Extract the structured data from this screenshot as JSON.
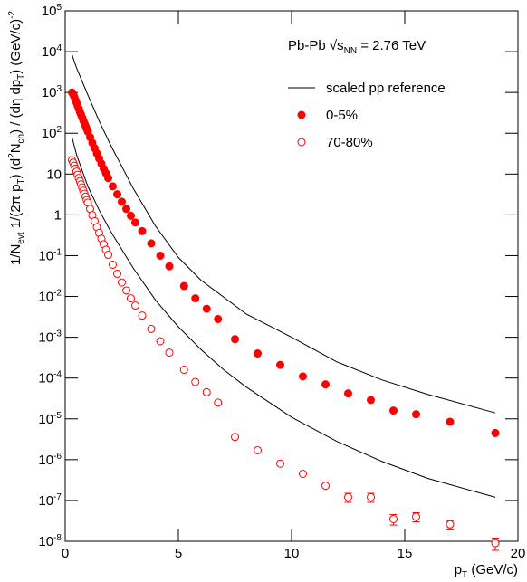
{
  "chart_data": {
    "type": "scatter",
    "log_y": true,
    "xlabel": "p_{T} (GeV/c)",
    "ylabel": "1/N_{evt} 1/(2π p_{T}) (d^{2}N_{ch}) / (dη dp_{T}) (GeV/c)^{-2}",
    "annotation": "Pb-Pb  √s_{NN} = 2.76 TeV",
    "xlim": [
      0,
      20
    ],
    "xticks": [
      0,
      5,
      10,
      15,
      20
    ],
    "ylim": [
      1e-08,
      100000
    ],
    "yticks": [
      {
        "value": 1e-08,
        "label": "10^{-8}"
      },
      {
        "value": 1e-07,
        "label": "10^{-7}"
      },
      {
        "value": 1e-06,
        "label": "10^{-6}"
      },
      {
        "value": 1e-05,
        "label": "10^{-5}"
      },
      {
        "value": 0.0001,
        "label": "10^{-4}"
      },
      {
        "value": 0.001,
        "label": "10^{-3}"
      },
      {
        "value": 0.01,
        "label": "10^{-2}"
      },
      {
        "value": 0.1,
        "label": "10^{-1}"
      },
      1,
      10,
      {
        "value": 100,
        "label": "10^{2}"
      },
      {
        "value": 1000,
        "label": "10^{3}"
      },
      {
        "value": 10000,
        "label": "10^{4}"
      },
      {
        "value": 100000,
        "label": "10^{5}"
      }
    ],
    "series": [
      {
        "name": "scaled pp reference",
        "color": "#000000",
        "marker": "line",
        "x": [
          0.3,
          0.5,
          1,
          1.5,
          2,
          3,
          4,
          5,
          6,
          8,
          10,
          12,
          14,
          16,
          19
        ],
        "values": [
          8500,
          4000,
          870,
          200,
          52,
          4.5,
          0.52,
          0.09,
          0.025,
          0.0037,
          0.001,
          0.00025,
          9e-05,
          4e-05,
          1.4e-05
        ]
      },
      {
        "color": "#000000",
        "marker": "line",
        "x": [
          0.3,
          0.5,
          1,
          1.5,
          2,
          3,
          4,
          5,
          6,
          7,
          8,
          10,
          12,
          14,
          16,
          19
        ],
        "values": [
          80,
          30,
          5,
          1.3,
          0.4,
          0.05,
          0.008,
          0.0018,
          0.0005,
          0.00016,
          6e-05,
          1.1e-05,
          2.8e-06,
          9e-07,
          3.5e-07,
          1.2e-07
        ]
      },
      {
        "name": "0-5%",
        "color": "#ff0000",
        "marker": "filled",
        "x": [
          0.3,
          0.35,
          0.4,
          0.45,
          0.5,
          0.55,
          0.6,
          0.65,
          0.7,
          0.75,
          0.8,
          0.85,
          0.9,
          0.95,
          1.0,
          1.1,
          1.2,
          1.3,
          1.4,
          1.5,
          1.6,
          1.7,
          1.8,
          1.9,
          2.1,
          2.3,
          2.5,
          2.7,
          2.9,
          3.1,
          3.4,
          3.8,
          4.2,
          4.6,
          5.25,
          5.75,
          6.25,
          6.75,
          7.5,
          8.5,
          9.5,
          10.5,
          11.5,
          12.5,
          13.5,
          14.5,
          15.5,
          17,
          19
        ],
        "values": [
          1000,
          900,
          780,
          650,
          560,
          470,
          400,
          335,
          285,
          240,
          205,
          175,
          150,
          128,
          110,
          80,
          58,
          43,
          32,
          24,
          18,
          13.5,
          10.5,
          8,
          5,
          3.2,
          2.1,
          1.4,
          0.95,
          0.65,
          0.4,
          0.2,
          0.1,
          0.055,
          0.018,
          0.009,
          0.005,
          0.0028,
          0.0009,
          0.0004,
          0.00021,
          0.00011,
          7e-05,
          4.2e-05,
          2.9e-05,
          1.6e-05,
          1.3e-05,
          8.5e-06,
          4.5e-06
        ]
      },
      {
        "name": "70-80%",
        "color": "#ff0000",
        "marker": "open",
        "x": [
          0.3,
          0.35,
          0.4,
          0.45,
          0.5,
          0.55,
          0.6,
          0.65,
          0.7,
          0.75,
          0.8,
          0.85,
          0.9,
          0.95,
          1.0,
          1.1,
          1.2,
          1.3,
          1.4,
          1.5,
          1.6,
          1.7,
          1.8,
          1.9,
          2.1,
          2.3,
          2.5,
          2.7,
          2.9,
          3.1,
          3.4,
          3.8,
          4.2,
          4.6,
          5.25,
          5.75,
          6.25,
          6.75,
          7.5,
          8.5,
          9.5,
          10.5,
          11.5,
          12.5,
          13.5,
          14.5,
          15.5,
          17,
          19
        ],
        "values": [
          22,
          19,
          16,
          13.5,
          11.5,
          9.6,
          8,
          6.7,
          5.6,
          4.7,
          3.9,
          3.3,
          2.8,
          2.3,
          2,
          1.4,
          0.98,
          0.7,
          0.5,
          0.36,
          0.26,
          0.19,
          0.14,
          0.105,
          0.06,
          0.036,
          0.022,
          0.014,
          0.009,
          0.006,
          0.0034,
          0.0016,
          0.0008,
          0.00042,
          0.00016,
          8e-05,
          4.5e-05,
          2.5e-05,
          3.6e-06,
          1.7e-06,
          8e-07,
          4.5e-07,
          2.3e-07,
          1.2e-07,
          1.2e-07,
          3.5e-08,
          4e-08,
          2.6e-08,
          9e-09
        ],
        "errors": [
          null,
          null,
          null,
          null,
          null,
          null,
          null,
          null,
          null,
          null,
          null,
          null,
          null,
          null,
          null,
          null,
          null,
          null,
          null,
          null,
          null,
          null,
          null,
          null,
          null,
          null,
          null,
          null,
          null,
          null,
          null,
          null,
          null,
          null,
          null,
          null,
          null,
          null,
          null,
          null,
          null,
          null,
          null,
          3e-08,
          3e-08,
          1e-08,
          1e-08,
          6e-09,
          3e-09
        ]
      }
    ]
  }
}
